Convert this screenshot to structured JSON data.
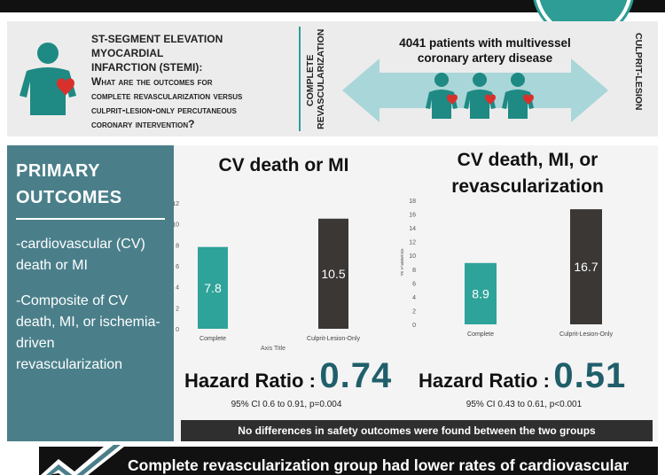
{
  "header": {
    "question_line1": "ST-SEGMENT ELEVATION MYOCARDIAL",
    "question_line2": "INFARCTION (STEMI):",
    "question_line3": "What are the outcomes for",
    "question_line4": "complete revascularization versus",
    "question_line5": "culprit-lesion-only percutaneous",
    "question_line6": "coronary intervention?",
    "left_arm_label": "COMPLETE REVASCULARIZATION",
    "right_arm_label": "CULPRIT-LESION",
    "patients_line1": "4041 patients with multivessel",
    "patients_line2": "coronary artery disease"
  },
  "outcomes": {
    "title_line1": "PRIMARY",
    "title_line2": "OUTCOMES",
    "item1": "-cardiovascular (CV) death or MI",
    "item2": "-Composite of CV death, MI, or ischemia-driven revascularization"
  },
  "chart_data": [
    {
      "type": "bar",
      "title": "CV death or MI",
      "categories": [
        "Complete",
        "Culprit-Lesion-Only"
      ],
      "values": [
        7.8,
        10.5
      ],
      "value_labels": [
        "7.8",
        "10.5"
      ],
      "xlabel": "Axis Title",
      "ylabel": "",
      "ylim": [
        0,
        12
      ],
      "yticks": [
        0,
        2,
        4,
        6,
        8,
        10,
        12
      ],
      "colors": [
        "#2ea39a",
        "#3a3735"
      ],
      "grid": false
    },
    {
      "type": "bar",
      "title": "CV death, MI, or revascularization",
      "categories": [
        "Complete",
        "Culprit-Lesion-Only"
      ],
      "values": [
        8.9,
        16.7
      ],
      "value_labels": [
        "8.9",
        "16.7"
      ],
      "xlabel": "",
      "ylabel": "% Patients",
      "ylim": [
        0,
        18
      ],
      "yticks": [
        0,
        2,
        4,
        6,
        8,
        10,
        12,
        14,
        16,
        18
      ],
      "colors": [
        "#2ea39a",
        "#3a3735"
      ],
      "grid": false
    }
  ],
  "hazard": {
    "label": "Hazard Ratio :",
    "left_value": "0.74",
    "left_ci": "95% CI 0.6 to 0.91, p=0.004",
    "right_value": "0.51",
    "right_ci": "95% CI 0.43 to 0.61, p<0.001"
  },
  "safety_note": "No differences in safety outcomes were found between the two groups",
  "conclusion": "Complete revascularization group had lower rates of cardiovascular",
  "colors": {
    "teal": "#2e9d95",
    "slate": "#4a7f8a",
    "dark": "#3a3735",
    "arrow": "#a9d6d8",
    "heart": "#d9302b"
  }
}
